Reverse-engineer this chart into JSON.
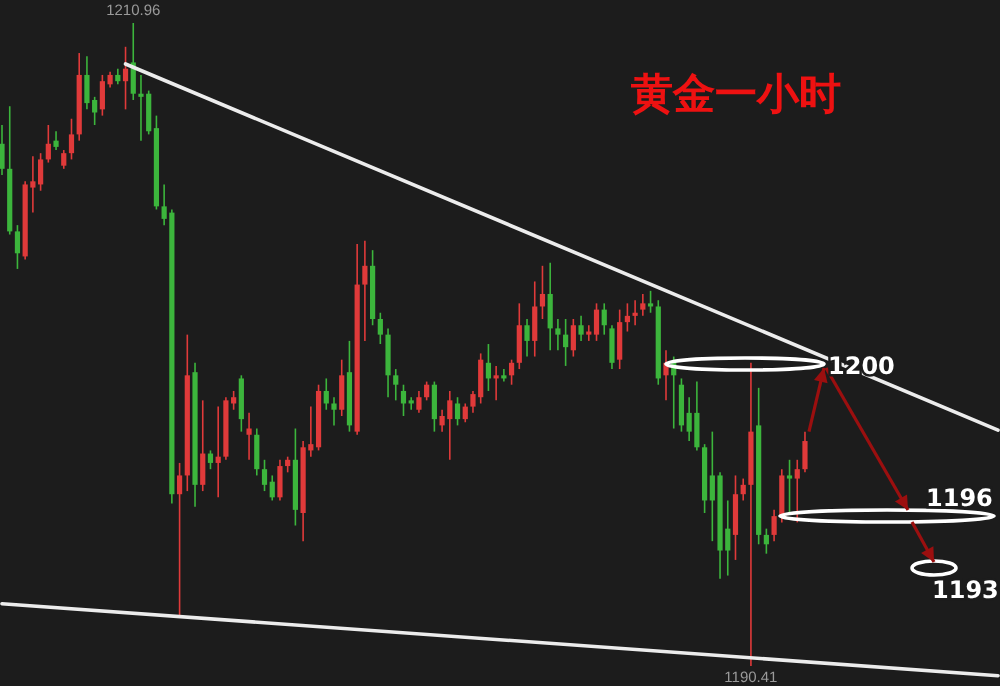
{
  "chart_data": {
    "type": "candlestick",
    "title": "黄金一小时",
    "categories": [
      null,
      null,
      null,
      null,
      null,
      null,
      null,
      null,
      null,
      null,
      null,
      null,
      null,
      null,
      null,
      null,
      null,
      null,
      null,
      null,
      null,
      null,
      null,
      null,
      null,
      null,
      null,
      null,
      null,
      null,
      null,
      null,
      null,
      null,
      null,
      null,
      null,
      null,
      null,
      null,
      null,
      null,
      null,
      null,
      null,
      null,
      null,
      null,
      null,
      null,
      null,
      null,
      null,
      null,
      null,
      null,
      null,
      null,
      null,
      null,
      null,
      null,
      null,
      null,
      null,
      null,
      null,
      null,
      null,
      null,
      null,
      null,
      null,
      null,
      null,
      null,
      null,
      null,
      null,
      null,
      null,
      null,
      null,
      null,
      null,
      null,
      null,
      null,
      null,
      null,
      null,
      null,
      null,
      null,
      null,
      null,
      null,
      null,
      null,
      null,
      null,
      null,
      null,
      null,
      null,
      null,
      null,
      null,
      null,
      null,
      null,
      null,
      null,
      null,
      null,
      null,
      null,
      null,
      null,
      null,
      null,
      null,
      null,
      null,
      null,
      null,
      null,
      null,
      null,
      null
    ],
    "series": [
      {
        "colors": [
          "#3cb53c",
          "#3cb53c",
          "#3cb53c",
          "#e03a3a",
          "#e03a3a",
          "#e03a3a",
          "#e03a3a",
          "#3cb53c",
          "#e03a3a",
          "#e03a3a",
          "#e03a3a",
          "#3cb53c",
          "#3cb53c",
          "#e03a3a",
          "#e03a3a",
          "#3cb53c",
          "#e03a3a",
          "#3cb53c",
          "#3cb53c",
          "#3cb53c",
          "#3cb53c",
          "#3cb53c",
          "#3cb53c",
          "#e03a3a",
          "#e03a3a",
          "#3cb53c",
          "#e03a3a",
          "#3cb53c",
          "#e03a3a",
          "#e03a3a",
          "#e03a3a",
          "#3cb53c",
          "#e03a3a",
          "#3cb53c",
          "#3cb53c",
          "#3cb53c",
          "#e03a3a",
          "#e03a3a",
          "#3cb53c",
          "#e03a3a",
          "#e03a3a",
          "#e03a3a",
          "#3cb53c",
          "#3cb53c",
          "#e03a3a",
          "#3cb53c",
          "#e03a3a",
          "#e03a3a",
          "#3cb53c",
          "#3cb53c",
          "#3cb53c",
          "#3cb53c",
          "#3cb53c",
          "#3cb53c",
          "#e03a3a",
          "#e03a3a",
          "#3cb53c",
          "#e03a3a",
          "#e03a3a",
          "#3cb53c",
          "#e03a3a",
          "#e03a3a",
          "#e03a3a",
          "#3cb53c",
          "#e03a3a",
          "#3cb53c",
          "#e03a3a",
          "#e03a3a",
          "#3cb53c",
          "#e03a3a",
          "#e03a3a",
          "#3cb53c",
          "#3cb53c",
          "#3cb53c",
          "#e03a3a",
          "#3cb53c",
          "#e03a3a",
          "#e03a3a",
          "#3cb53c",
          "#3cb53c",
          "#e03a3a",
          "#e03a3a",
          "#e03a3a",
          "#e03a3a",
          "#3cb53c",
          "#3cb53c",
          "#e03a3a",
          "#3cb53c",
          "#3cb53c",
          "#3cb53c",
          "#3cb53c",
          "#3cb53c",
          "#3cb53c",
          "#3cb53c",
          "#3cb53c",
          "#e03a3a",
          "#e03a3a",
          "#e03a3a",
          "#3cb53c",
          "#3cb53c",
          "#e03a3a",
          "#e03a3a",
          "#3cb53c",
          "#e03a3a",
          "#e03a3a",
          null,
          null,
          null,
          null,
          null,
          null,
          null,
          null,
          null,
          null,
          null,
          null,
          null,
          null,
          null,
          null,
          null,
          null,
          null,
          null,
          null,
          null,
          null,
          null,
          null
        ],
        "ohlc": [
          [
            1207.1,
            1207.7,
            1206.1,
            1206.3
          ],
          [
            1206.3,
            1208.3,
            1204.2,
            1204.3
          ],
          [
            1204.3,
            1204.5,
            1203.1,
            1203.6
          ],
          [
            1203.5,
            1205.9,
            1203.4,
            1205.8
          ],
          [
            1205.7,
            1206.7,
            1204.9,
            1205.9
          ],
          [
            1205.8,
            1206.8,
            1205.6,
            1206.6
          ],
          [
            1206.6,
            1207.7,
            1206.5,
            1207.1
          ],
          [
            1207.2,
            1207.5,
            1206.9,
            1207.0
          ],
          [
            1206.4,
            1206.9,
            1206.3,
            1206.8
          ],
          [
            1206.8,
            1207.9,
            1206.6,
            1207.4
          ],
          [
            1207.4,
            1210.0,
            1207.2,
            1209.3
          ],
          [
            1209.3,
            1209.9,
            1208.2,
            1208.4
          ],
          [
            1208.5,
            1208.6,
            1207.7,
            1208.1
          ],
          [
            1208.2,
            1209.3,
            1208.0,
            1209.1
          ],
          [
            1209.0,
            1209.4,
            1208.9,
            1209.3
          ],
          [
            1209.3,
            1209.5,
            1209.0,
            1209.1
          ],
          [
            1209.1,
            1210.2,
            1208.2,
            1209.5
          ],
          [
            1209.7,
            1210.96,
            1208.5,
            1208.7
          ],
          [
            1208.7,
            1209.3,
            1207.2,
            1208.6
          ],
          [
            1208.7,
            1208.8,
            1207.4,
            1207.5
          ],
          [
            1207.6,
            1208.0,
            1205.0,
            1205.1
          ],
          [
            1205.1,
            1205.8,
            1204.5,
            1204.7
          ],
          [
            1204.9,
            1205.0,
            1195.6,
            1195.9
          ],
          [
            1195.9,
            1196.9,
            1192.0,
            1196.5
          ],
          [
            1196.5,
            1201.0,
            1196.0,
            1199.7
          ],
          [
            1199.8,
            1200.1,
            1195.5,
            1196.2
          ],
          [
            1196.2,
            1198.9,
            1196.0,
            1197.2
          ],
          [
            1197.2,
            1197.3,
            1196.7,
            1196.9
          ],
          [
            1196.9,
            1198.7,
            1195.8,
            1197.1
          ],
          [
            1197.1,
            1199.0,
            1197.0,
            1198.9
          ],
          [
            1198.8,
            1199.2,
            1198.6,
            1199.0
          ],
          [
            1199.6,
            1199.7,
            1197.9,
            1198.3
          ],
          [
            1197.8,
            1198.5,
            1197.0,
            1198.0
          ],
          [
            1197.8,
            1198.0,
            1196.5,
            1196.7
          ],
          [
            1196.7,
            1197.0,
            1196.0,
            1196.2
          ],
          [
            1196.3,
            1196.5,
            1195.7,
            1195.8
          ],
          [
            1195.8,
            1197.0,
            1195.7,
            1196.8
          ],
          [
            1196.8,
            1197.1,
            1196.6,
            1197.0
          ],
          [
            1197.0,
            1198.0,
            1194.9,
            1195.4
          ],
          [
            1195.3,
            1197.6,
            1194.4,
            1197.4
          ],
          [
            1197.3,
            1198.7,
            1197.1,
            1197.5
          ],
          [
            1197.4,
            1199.4,
            1197.3,
            1199.2
          ],
          [
            1199.2,
            1199.6,
            1198.6,
            1198.8
          ],
          [
            1198.8,
            1199.0,
            1198.1,
            1198.6
          ],
          [
            1198.6,
            1200.2,
            1198.4,
            1199.7
          ],
          [
            1199.8,
            1200.8,
            1197.9,
            1198.1
          ],
          [
            1197.9,
            1203.9,
            1197.8,
            1202.6
          ],
          [
            1202.6,
            1204.0,
            1200.8,
            1203.2
          ],
          [
            1203.2,
            1203.7,
            1201.3,
            1201.5
          ],
          [
            1201.5,
            1201.7,
            1200.7,
            1201.0
          ],
          [
            1201.0,
            1201.2,
            1199.0,
            1199.7
          ],
          [
            1199.7,
            1199.9,
            1198.9,
            1199.4
          ],
          [
            1199.2,
            1199.4,
            1198.4,
            1198.8
          ],
          [
            1198.9,
            1199.0,
            1198.6,
            1198.8
          ],
          [
            1198.6,
            1199.2,
            1198.5,
            1199.0
          ],
          [
            1199.0,
            1199.5,
            1198.9,
            1199.4
          ],
          [
            1199.4,
            1199.5,
            1197.9,
            1198.3
          ],
          [
            1198.1,
            1198.6,
            1197.9,
            1198.4
          ],
          [
            1198.3,
            1199.2,
            1197.0,
            1198.9
          ],
          [
            1198.8,
            1199.0,
            1198.1,
            1198.3
          ],
          [
            1198.3,
            1198.8,
            1198.2,
            1198.7
          ],
          [
            1198.7,
            1199.2,
            1198.5,
            1199.1
          ],
          [
            1199.0,
            1200.4,
            1198.8,
            1200.2
          ],
          [
            1200.1,
            1200.7,
            1199.2,
            1199.6
          ],
          [
            1199.6,
            1200.0,
            1198.9,
            1199.7
          ],
          [
            1199.7,
            1199.9,
            1199.5,
            1199.6
          ],
          [
            1199.7,
            1200.2,
            1199.4,
            1200.1
          ],
          [
            1200.1,
            1202.0,
            1199.9,
            1201.3
          ],
          [
            1201.3,
            1201.5,
            1200.3,
            1200.8
          ],
          [
            1200.8,
            1202.7,
            1200.3,
            1201.9
          ],
          [
            1201.9,
            1203.2,
            1201.5,
            1202.3
          ],
          [
            1202.3,
            1203.3,
            1200.5,
            1201.2
          ],
          [
            1201.2,
            1201.5,
            1200.5,
            1201.0
          ],
          [
            1201.0,
            1201.5,
            1200.0,
            1200.6
          ],
          [
            1200.5,
            1201.5,
            1200.3,
            1201.3
          ],
          [
            1201.3,
            1201.6,
            1200.8,
            1201.0
          ],
          [
            1201.0,
            1201.3,
            1200.8,
            1201.1
          ],
          [
            1201.0,
            1202.0,
            1200.8,
            1201.8
          ],
          [
            1201.8,
            1202.0,
            1201.0,
            1201.3
          ],
          [
            1201.2,
            1201.3,
            1199.9,
            1200.1
          ],
          [
            1200.2,
            1201.8,
            1199.9,
            1201.4
          ],
          [
            1201.4,
            1202.0,
            1201.1,
            1201.6
          ],
          [
            1201.6,
            1202.1,
            1201.3,
            1201.7
          ],
          [
            1201.8,
            1202.3,
            1201.6,
            1202.0
          ],
          [
            1202.0,
            1202.4,
            1201.7,
            1201.9
          ],
          [
            1201.9,
            1202.1,
            1199.4,
            1199.6
          ],
          [
            1199.7,
            1200.5,
            1198.9,
            1200.1
          ],
          [
            1200.1,
            1200.3,
            1198.0,
            1199.7
          ],
          [
            1199.4,
            1199.6,
            1197.9,
            1198.1
          ],
          [
            1198.5,
            1199.0,
            1197.6,
            1197.9
          ],
          [
            1198.5,
            1199.5,
            1197.3,
            1197.4
          ],
          [
            1197.4,
            1197.5,
            1195.3,
            1195.7
          ],
          [
            1196.5,
            1197.9,
            1194.4,
            1195.7
          ],
          [
            1196.5,
            1196.6,
            1193.2,
            1194.1
          ],
          [
            1194.8,
            1195.7,
            1193.3,
            1194.1
          ],
          [
            1194.6,
            1196.5,
            1193.8,
            1195.9
          ],
          [
            1195.9,
            1196.4,
            1195.7,
            1196.2
          ],
          [
            1196.2,
            1200.1,
            1190.41,
            1197.9
          ],
          [
            1198.1,
            1199.3,
            1194.3,
            1194.6
          ],
          [
            1194.6,
            1194.8,
            1194.0,
            1194.3
          ],
          [
            1194.6,
            1195.4,
            1194.4,
            1195.2
          ],
          [
            1195.2,
            1196.7,
            1195.0,
            1196.5
          ],
          [
            1196.5,
            1197.0,
            1195.3,
            1196.4
          ],
          [
            1196.4,
            1197.0,
            1195.0,
            1196.7
          ],
          [
            1196.7,
            1197.9,
            1196.6,
            1197.6
          ],
          null,
          null,
          null,
          null,
          null,
          null,
          null,
          null,
          null,
          null,
          null,
          null,
          null,
          null,
          null,
          null,
          null,
          null,
          null,
          null,
          null,
          null,
          null,
          null,
          null
        ]
      },
      {
        "type": "line",
        "color": "#ececec",
        "values": [
          null,
          null,
          null,
          null,
          null,
          null,
          null,
          null,
          null,
          null,
          null,
          null,
          null,
          null,
          null,
          null,
          1209.65,
          null,
          null,
          null,
          null,
          null,
          null,
          null,
          null,
          null,
          null,
          null,
          null,
          null,
          null,
          null,
          null,
          null,
          null,
          null,
          null,
          null,
          null,
          null,
          null,
          null,
          null,
          null,
          null,
          null,
          null,
          null,
          null,
          null,
          null,
          null,
          null,
          null,
          null,
          null,
          null,
          null,
          null,
          null,
          null,
          null,
          null,
          null,
          null,
          null,
          null,
          null,
          null,
          null,
          null,
          null,
          null,
          null,
          null,
          null,
          null,
          null,
          null,
          null,
          null,
          null,
          null,
          null,
          null,
          null,
          null,
          null,
          null,
          null,
          null,
          null,
          null,
          null,
          null,
          null,
          null,
          null,
          null,
          null,
          null,
          null,
          null,
          null,
          null,
          null,
          null,
          null,
          null,
          null,
          null,
          null,
          null,
          null,
          null,
          null,
          null,
          null,
          null,
          null,
          null,
          null,
          null,
          null,
          null,
          null,
          null,
          null,
          null,
          1197.95
        ]
      },
      {
        "type": "line",
        "color": "#ececec",
        "values": [
          1192.4,
          null,
          null,
          null,
          null,
          null,
          null,
          null,
          null,
          null,
          null,
          null,
          null,
          null,
          null,
          null,
          null,
          null,
          null,
          null,
          null,
          null,
          null,
          null,
          null,
          null,
          null,
          null,
          null,
          null,
          null,
          null,
          null,
          null,
          null,
          null,
          null,
          null,
          null,
          null,
          null,
          null,
          null,
          null,
          null,
          null,
          null,
          null,
          null,
          null,
          null,
          null,
          null,
          null,
          null,
          null,
          null,
          null,
          null,
          null,
          null,
          null,
          null,
          null,
          null,
          null,
          null,
          null,
          null,
          null,
          null,
          null,
          null,
          null,
          null,
          null,
          null,
          null,
          null,
          null,
          null,
          null,
          null,
          null,
          null,
          null,
          null,
          null,
          null,
          null,
          null,
          null,
          null,
          null,
          null,
          null,
          null,
          null,
          null,
          null,
          null,
          null,
          null,
          null,
          null,
          null,
          null,
          null,
          null,
          null,
          null,
          null,
          null,
          null,
          null,
          null,
          null,
          null,
          null,
          null,
          null,
          null,
          null,
          null,
          null,
          null,
          null,
          null,
          null,
          1190.1
        ]
      }
    ],
    "annotations": [
      {
        "text": "1210.96",
        "y": 1210.96
      },
      {
        "text": "1190.41",
        "y": 1190.41
      },
      "1200",
      "1196",
      "1193"
    ]
  }
}
